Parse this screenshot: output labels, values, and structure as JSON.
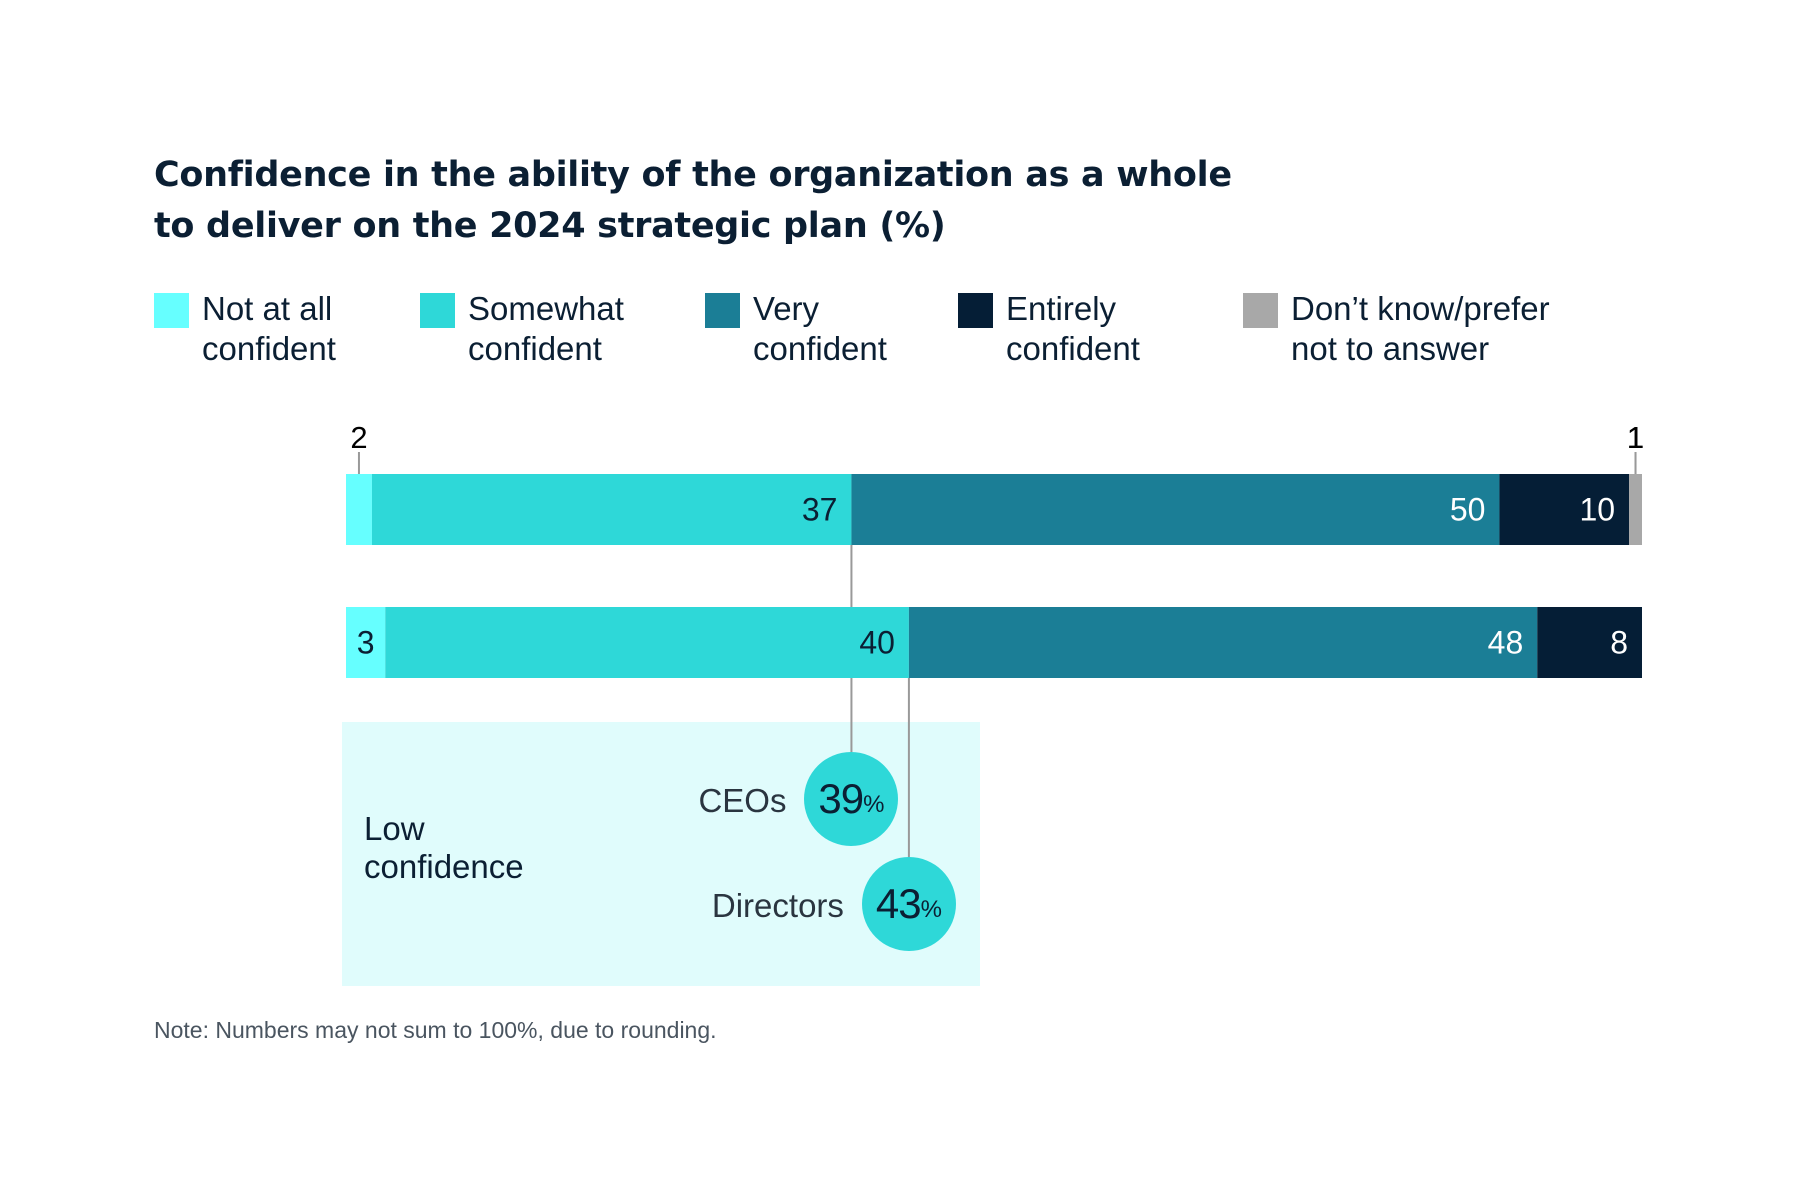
{
  "title": {
    "line1": "Confidence in the ability of the organization as a whole",
    "line2": "to deliver on the 2024 strategic plan (%)"
  },
  "legend": [
    {
      "line1": "Not at all",
      "line2": "confident",
      "color": "#66ffff"
    },
    {
      "line1": "Somewhat",
      "line2": "confident",
      "color": "#2ed8d8"
    },
    {
      "line1": "Very",
      "line2": "confident",
      "color": "#1b7e96"
    },
    {
      "line1": "Entirely",
      "line2": "confident",
      "color": "#051e36"
    },
    {
      "line1": "Don’t know/prefer",
      "line2": "not to answer",
      "color": "#a8a8a8"
    }
  ],
  "chart_data": {
    "type": "bar",
    "orientation": "horizontal-stacked",
    "categories": [
      "CEOs",
      "Directors"
    ],
    "series": [
      {
        "name": "Not at all confident",
        "values": [
          2,
          3
        ],
        "color": "#66ffff"
      },
      {
        "name": "Somewhat confident",
        "values": [
          37,
          40
        ],
        "color": "#2ed8d8"
      },
      {
        "name": "Very confident",
        "values": [
          50,
          48
        ],
        "color": "#1b7e96"
      },
      {
        "name": "Entirely confident",
        "values": [
          10,
          8
        ],
        "color": "#051e36"
      },
      {
        "name": "Don’t know/prefer not to answer",
        "values": [
          1,
          0
        ],
        "color": "#a8a8a8"
      }
    ],
    "xlim": [
      0,
      100
    ],
    "grid": false,
    "legend_position": "top"
  },
  "low_confidence": {
    "label_line1": "Low",
    "label_line2": "confidence",
    "groups": [
      {
        "name": "CEOs",
        "value": "39",
        "unit": "%"
      },
      {
        "name": "Directors",
        "value": "43",
        "unit": "%"
      }
    ]
  },
  "note": "Note: Numbers may not sum to 100%, due to rounding."
}
